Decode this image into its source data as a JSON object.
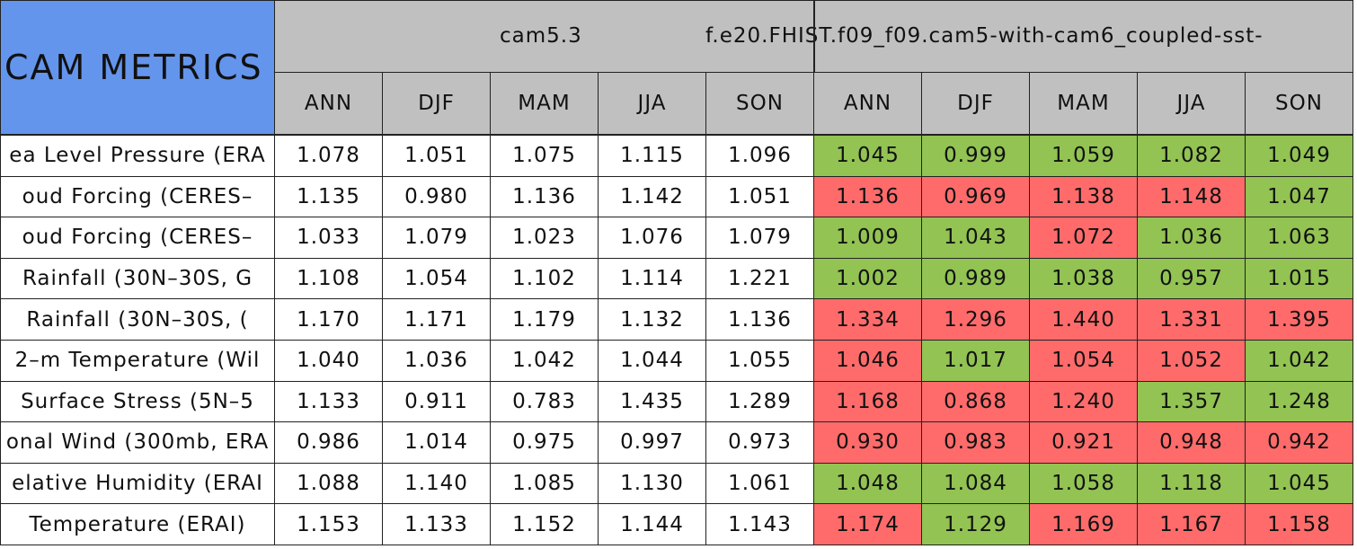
{
  "header": {
    "title": "CAM METRICS",
    "groups": [
      "cam5.3",
      "f.e20.FHIST.f09_f09.cam5-with-cam6_coupled-sst-"
    ],
    "columns": [
      "ANN",
      "DJF",
      "MAM",
      "JJA",
      "SON",
      "ANN",
      "DJF",
      "MAM",
      "JJA",
      "SON"
    ]
  },
  "table": {
    "rows": [
      {
        "label": "ea Level Pressure (ERA",
        "values": [
          "1.078",
          "1.051",
          "1.075",
          "1.115",
          "1.096",
          "1.045",
          "0.999",
          "1.059",
          "1.082",
          "1.049"
        ],
        "colors": [
          "#ffffff",
          "#ffffff",
          "#ffffff",
          "#ffffff",
          "#ffffff",
          "#92c353",
          "#92c353",
          "#92c353",
          "#92c353",
          "#92c353"
        ]
      },
      {
        "label": "oud Forcing (CERES–",
        "values": [
          "1.135",
          "0.980",
          "1.136",
          "1.142",
          "1.051",
          "1.136",
          "0.969",
          "1.138",
          "1.148",
          "1.047"
        ],
        "colors": [
          "#ffffff",
          "#ffffff",
          "#ffffff",
          "#ffffff",
          "#ffffff",
          "#ff6b6b",
          "#ff6b6b",
          "#ff6b6b",
          "#ff6b6b",
          "#92c353"
        ]
      },
      {
        "label": "oud Forcing (CERES–",
        "values": [
          "1.033",
          "1.079",
          "1.023",
          "1.076",
          "1.079",
          "1.009",
          "1.043",
          "1.072",
          "1.036",
          "1.063"
        ],
        "colors": [
          "#ffffff",
          "#ffffff",
          "#ffffff",
          "#ffffff",
          "#ffffff",
          "#92c353",
          "#92c353",
          "#ff6b6b",
          "#92c353",
          "#92c353"
        ]
      },
      {
        "label": "Rainfall (30N–30S, G",
        "values": [
          "1.108",
          "1.054",
          "1.102",
          "1.114",
          "1.221",
          "1.002",
          "0.989",
          "1.038",
          "0.957",
          "1.015"
        ],
        "colors": [
          "#ffffff",
          "#ffffff",
          "#ffffff",
          "#ffffff",
          "#ffffff",
          "#92c353",
          "#92c353",
          "#92c353",
          "#92c353",
          "#92c353"
        ]
      },
      {
        "label": "Rainfall (30N–30S, (",
        "values": [
          "1.170",
          "1.171",
          "1.179",
          "1.132",
          "1.136",
          "1.334",
          "1.296",
          "1.440",
          "1.331",
          "1.395"
        ],
        "colors": [
          "#ffffff",
          "#ffffff",
          "#ffffff",
          "#ffffff",
          "#ffffff",
          "#ff6b6b",
          "#ff6b6b",
          "#ff6b6b",
          "#ff6b6b",
          "#ff6b6b"
        ]
      },
      {
        "label": "2–m Temperature (Wil",
        "values": [
          "1.040",
          "1.036",
          "1.042",
          "1.044",
          "1.055",
          "1.046",
          "1.017",
          "1.054",
          "1.052",
          "1.042"
        ],
        "colors": [
          "#ffffff",
          "#ffffff",
          "#ffffff",
          "#ffffff",
          "#ffffff",
          "#ff6b6b",
          "#92c353",
          "#ff6b6b",
          "#ff6b6b",
          "#92c353"
        ]
      },
      {
        "label": "Surface Stress (5N–5",
        "values": [
          "1.133",
          "0.911",
          "0.783",
          "1.435",
          "1.289",
          "1.168",
          "0.868",
          "1.240",
          "1.357",
          "1.248"
        ],
        "colors": [
          "#ffffff",
          "#ffffff",
          "#ffffff",
          "#ffffff",
          "#ffffff",
          "#ff6b6b",
          "#ff6b6b",
          "#ff6b6b",
          "#92c353",
          "#92c353"
        ]
      },
      {
        "label": "onal Wind (300mb, ERA",
        "values": [
          "0.986",
          "1.014",
          "0.975",
          "0.997",
          "0.973",
          "0.930",
          "0.983",
          "0.921",
          "0.948",
          "0.942"
        ],
        "colors": [
          "#ffffff",
          "#ffffff",
          "#ffffff",
          "#ffffff",
          "#ffffff",
          "#ff6b6b",
          "#ff6b6b",
          "#ff6b6b",
          "#ff6b6b",
          "#ff6b6b"
        ]
      },
      {
        "label": "elative Humidity (ERAI",
        "values": [
          "1.088",
          "1.140",
          "1.085",
          "1.130",
          "1.061",
          "1.048",
          "1.084",
          "1.058",
          "1.118",
          "1.045"
        ],
        "colors": [
          "#ffffff",
          "#ffffff",
          "#ffffff",
          "#ffffff",
          "#ffffff",
          "#92c353",
          "#92c353",
          "#92c353",
          "#92c353",
          "#92c353"
        ]
      },
      {
        "label": "Temperature (ERAI)",
        "values": [
          "1.153",
          "1.133",
          "1.152",
          "1.144",
          "1.143",
          "1.174",
          "1.129",
          "1.169",
          "1.167",
          "1.158"
        ],
        "colors": [
          "#ffffff",
          "#ffffff",
          "#ffffff",
          "#ffffff",
          "#ffffff",
          "#ff6b6b",
          "#92c353",
          "#ff6b6b",
          "#ff6b6b",
          "#ff6b6b"
        ]
      }
    ]
  }
}
